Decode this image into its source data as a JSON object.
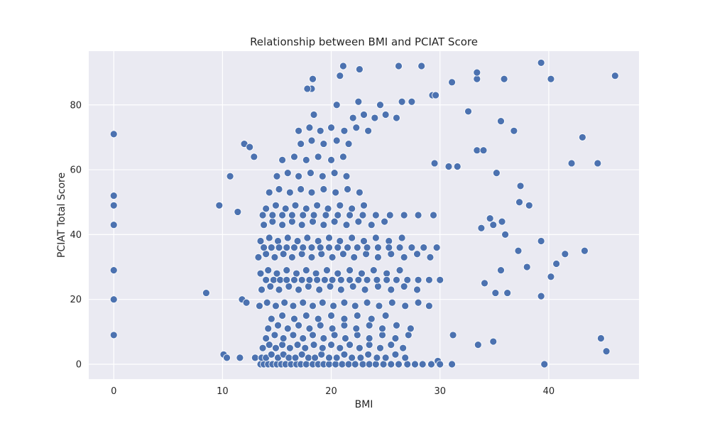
{
  "chart_data": {
    "type": "scatter",
    "title": "Relationship between BMI and PCIAT Score",
    "xlabel": "BMI",
    "ylabel": "PCIAT Total Score",
    "xlim": [
      -2.3,
      48.3
    ],
    "ylim": [
      -4.6,
      96.6
    ],
    "xticks": [
      0,
      10,
      20,
      30,
      40
    ],
    "yticks": [
      0,
      20,
      40,
      60,
      80
    ],
    "grid": true,
    "legend": "none",
    "colors": {
      "point": "#4c72b0",
      "background": "#eaeaf2"
    },
    "series": [
      {
        "x": [
          0,
          0,
          0,
          0,
          0,
          0,
          0,
          8.5,
          9.7,
          10.1,
          10.4,
          10.7,
          11.4,
          11.6,
          11.8,
          12.0,
          12.2,
          12.5,
          12.9,
          13.0,
          18.2,
          18.3,
          17.8,
          18.4,
          20.8,
          21.1,
          22.6,
          26.2,
          27.4,
          28.3,
          29.3,
          29.6,
          33.4,
          33.4,
          35.9,
          39.3,
          40.2,
          46.1,
          31.1,
          32.6,
          36.8,
          35.6,
          33.4,
          34.0,
          43.1,
          42.1,
          44.5,
          35.2,
          37.4,
          37.3,
          38.2,
          31.6,
          29.5,
          30.8,
          34.6,
          35.7,
          33.8,
          34.9,
          36.0,
          39.3,
          37.2,
          38.0,
          41.5,
          43.3,
          40.7,
          40.2,
          36.2,
          35.1,
          35.6,
          34.1,
          39.3,
          44.8,
          45.3,
          39.6,
          34.9,
          33.5,
          31.2,
          29.8,
          31.1,
          13.5,
          13.8,
          14.2,
          14.6,
          15.0,
          15.4,
          15.8,
          16.3,
          16.8,
          17.2,
          17.7,
          18.3,
          18.8,
          19.3,
          19.8,
          20.4,
          21.0,
          21.6,
          22.2,
          22.9,
          23.5,
          24.1,
          24.8,
          25.5,
          26.2,
          27.0,
          27.7,
          28.4,
          29.2,
          30.0,
          13.6,
          14.0,
          14.5,
          15.1,
          15.6,
          16.1,
          16.7,
          17.3,
          17.9,
          18.5,
          19.1,
          19.8,
          20.5,
          21.2,
          21.9,
          22.7,
          23.4,
          24.2,
          25.0,
          25.9,
          26.8,
          13.7,
          14.3,
          14.9,
          15.5,
          16.2,
          16.9,
          17.6,
          18.4,
          19.2,
          20.0,
          20.8,
          21.7,
          22.6,
          23.5,
          24.5,
          25.5,
          26.6,
          14.0,
          14.8,
          15.6,
          16.5,
          17.4,
          18.3,
          19.3,
          20.3,
          21.3,
          22.4,
          23.5,
          24.7,
          25.9,
          27.1,
          14.2,
          15.1,
          16.0,
          17.0,
          18.0,
          19.0,
          20.1,
          21.2,
          22.3,
          23.5,
          24.7,
          26.0,
          27.3,
          14.5,
          15.5,
          16.6,
          17.7,
          18.8,
          20.0,
          21.2,
          22.4,
          23.7,
          25.0,
          13.4,
          14.1,
          14.9,
          15.7,
          16.5,
          17.4,
          18.3,
          19.2,
          20.2,
          21.2,
          22.2,
          23.3,
          24.4,
          25.6,
          26.8,
          28.0,
          29.0,
          13.6,
          14.4,
          15.2,
          16.1,
          17.0,
          17.9,
          18.9,
          19.9,
          20.9,
          22.0,
          23.1,
          24.3,
          25.5,
          26.7,
          27.9,
          13.5,
          14.2,
          15.0,
          15.9,
          16.8,
          17.7,
          18.6,
          19.6,
          20.6,
          21.7,
          22.8,
          23.9,
          25.1,
          26.3,
          13.3,
          14.0,
          14.8,
          15.6,
          16.4,
          17.3,
          18.2,
          19.1,
          20.1,
          21.1,
          22.1,
          23.2,
          24.3,
          25.5,
          26.7,
          27.9,
          29.1,
          13.5,
          14.3,
          15.1,
          16.0,
          16.9,
          17.8,
          18.8,
          19.8,
          20.8,
          21.9,
          23.0,
          24.1,
          25.3,
          26.5,
          13.8,
          14.6,
          15.5,
          16.4,
          17.3,
          18.3,
          19.3,
          20.3,
          21.4,
          22.5,
          23.7,
          24.9,
          14.0,
          14.9,
          15.8,
          16.7,
          17.7,
          18.7,
          19.7,
          20.8,
          21.9,
          23.0,
          14.3,
          15.2,
          16.2,
          17.2,
          18.2,
          19.3,
          20.4,
          21.5,
          22.6,
          15.0,
          16.0,
          17.0,
          18.1,
          19.2,
          20.3,
          21.4,
          15.5,
          16.6,
          17.7,
          18.8,
          20.0,
          21.1,
          17.2,
          18.2,
          19.3,
          20.5,
          21.6,
          17.0,
          18.0,
          19.0,
          20.0,
          21.2,
          22.3,
          23.4,
          22.0,
          23.0,
          24.0,
          25.0,
          26.0,
          20.5,
          22.5,
          24.5,
          26.5,
          14.0,
          14.7,
          15.3,
          15.9,
          16.6,
          17.3,
          18.0,
          18.7,
          19.4,
          20.1,
          20.9,
          21.7,
          22.5,
          23.3,
          24.2,
          25.1,
          26.0,
          27.0,
          28.0,
          29.0,
          30.0,
          13.8,
          14.5,
          15.2,
          15.9,
          16.6,
          17.4,
          18.2,
          19.0,
          19.8,
          20.6,
          21.5,
          22.4,
          23.3,
          24.3,
          25.3,
          26.3,
          27.4,
          28.5,
          29.7,
          13.7,
          14.6,
          15.5,
          16.4,
          17.4,
          18.4,
          19.5,
          20.6,
          21.7,
          22.9,
          24.1,
          25.4,
          26.7,
          28.0,
          29.4
        ],
        "y": [
          71,
          52,
          49,
          43,
          29,
          20,
          9,
          22,
          49,
          3,
          2,
          58,
          47,
          2,
          20,
          68,
          19,
          67,
          64,
          2,
          85,
          88,
          85,
          77,
          89,
          92,
          91,
          92,
          81,
          92,
          83,
          83,
          88,
          90,
          88,
          93,
          88,
          89,
          87,
          78,
          72,
          75,
          66,
          66,
          70,
          62,
          62,
          59,
          55,
          50,
          49,
          61,
          62,
          61,
          45,
          44,
          42,
          43,
          40,
          38,
          35,
          30,
          34,
          35,
          31,
          27,
          22,
          22,
          29,
          25,
          21,
          8,
          4,
          0,
          7,
          6,
          9,
          1,
          0,
          0,
          0,
          0,
          0,
          0,
          0,
          0,
          0,
          0,
          0,
          0,
          0,
          0,
          0,
          0,
          0,
          0,
          0,
          0,
          0,
          0,
          0,
          0,
          0,
          0,
          0,
          0,
          0,
          0,
          0,
          2,
          2,
          3,
          2,
          3,
          2,
          2,
          3,
          2,
          2,
          3,
          2,
          2,
          3,
          2,
          2,
          3,
          2,
          2,
          3,
          2,
          5,
          6,
          5,
          6,
          5,
          6,
          5,
          6,
          5,
          6,
          5,
          6,
          5,
          6,
          5,
          6,
          5,
          8,
          9,
          8,
          9,
          8,
          9,
          8,
          9,
          8,
          9,
          8,
          9,
          8,
          9,
          11,
          12,
          11,
          12,
          11,
          12,
          11,
          12,
          11,
          12,
          11,
          12,
          11,
          14,
          15,
          14,
          15,
          14,
          15,
          14,
          15,
          14,
          15,
          18,
          19,
          18,
          19,
          18,
          19,
          18,
          19,
          18,
          19,
          18,
          19,
          18,
          19,
          18,
          19,
          18,
          23,
          24,
          23,
          24,
          23,
          24,
          23,
          24,
          23,
          24,
          23,
          24,
          23,
          24,
          23,
          28,
          29,
          28,
          29,
          28,
          29,
          28,
          29,
          28,
          29,
          28,
          29,
          28,
          29,
          33,
          34,
          33,
          34,
          33,
          34,
          33,
          34,
          33,
          34,
          33,
          34,
          33,
          34,
          33,
          34,
          33,
          38,
          39,
          38,
          39,
          38,
          39,
          38,
          39,
          38,
          39,
          38,
          39,
          38,
          39,
          43,
          44,
          43,
          44,
          43,
          44,
          43,
          44,
          43,
          44,
          43,
          44,
          48,
          49,
          48,
          49,
          48,
          49,
          48,
          49,
          48,
          49,
          53,
          54,
          53,
          54,
          53,
          54,
          53,
          54,
          53,
          58,
          59,
          58,
          59,
          58,
          59,
          58,
          63,
          64,
          63,
          64,
          63,
          64,
          68,
          69,
          68,
          69,
          68,
          72,
          73,
          72,
          73,
          72,
          73,
          72,
          76,
          77,
          76,
          77,
          76,
          80,
          81,
          80,
          81,
          26,
          26,
          26,
          26,
          26,
          26,
          26,
          26,
          26,
          26,
          26,
          26,
          26,
          26,
          26,
          26,
          26,
          26,
          26,
          26,
          26,
          36,
          36,
          36,
          36,
          36,
          36,
          36,
          36,
          36,
          36,
          36,
          36,
          36,
          36,
          36,
          36,
          36,
          36,
          36,
          46,
          46,
          46,
          46,
          46,
          46,
          46,
          46,
          46,
          46,
          46,
          46,
          46,
          46,
          46
        ]
      }
    ]
  }
}
